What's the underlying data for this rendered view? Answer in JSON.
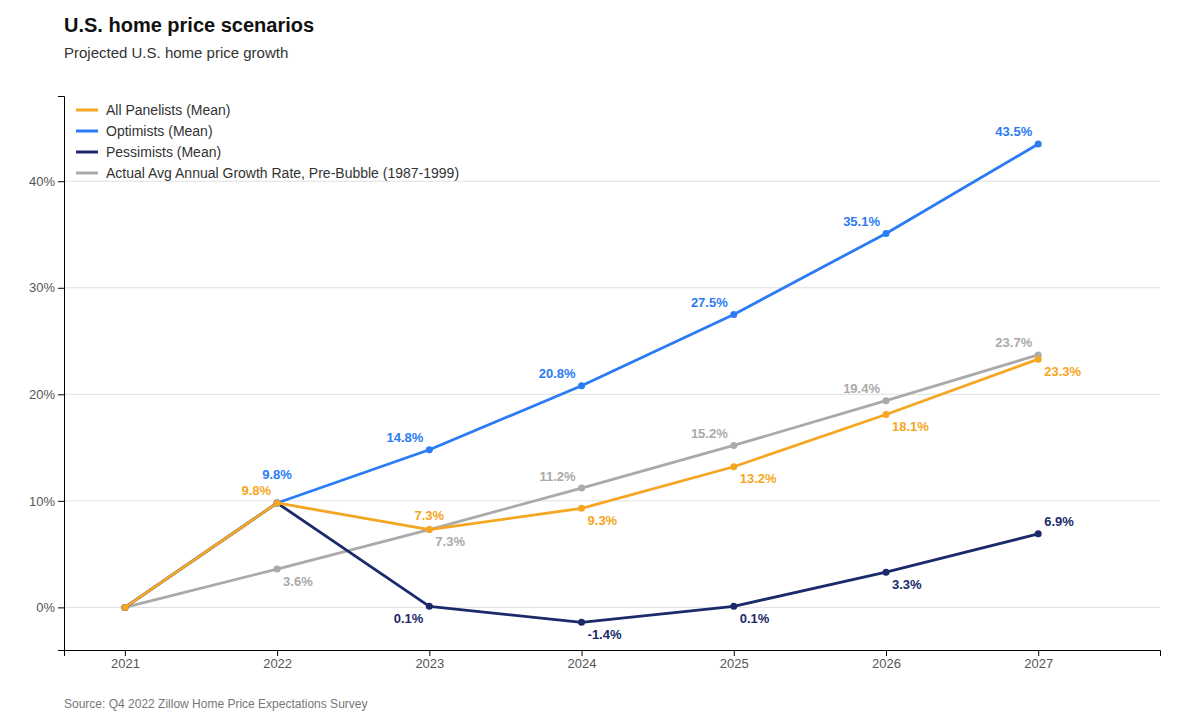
{
  "chart_data": {
    "type": "line",
    "title": "U.S. home price scenarios",
    "subtitle": "Projected U.S. home price growth",
    "source": "Source: Q4 2022 Zillow Home Price Expectations Survey",
    "x": [
      2021,
      2022,
      2023,
      2024,
      2025,
      2026,
      2027
    ],
    "xlim": [
      2020.6,
      2027.8
    ],
    "xticks": [
      2021,
      2022,
      2023,
      2024,
      2025,
      2026,
      2027
    ],
    "ylim": [
      -4,
      48
    ],
    "yticks": [
      {
        "value": 0,
        "label": "0%"
      },
      {
        "value": 10,
        "label": "10%"
      },
      {
        "value": 20,
        "label": "20%"
      },
      {
        "value": 30,
        "label": "30%"
      },
      {
        "value": 40,
        "label": "40%"
      }
    ],
    "grid": true,
    "legend": "upper left",
    "data_labels": true,
    "marker": "circle",
    "series": [
      {
        "name": "All Panelists (Mean)",
        "color": "#F5A623",
        "values": [
          0.0,
          9.8,
          7.3,
          9.3,
          13.2,
          18.1,
          23.3
        ],
        "value_labels": [
          null,
          "9.8%",
          "7.3%",
          "9.3%",
          "13.2%",
          "18.1%",
          "23.3%"
        ]
      },
      {
        "name": "Optimists (Mean)",
        "color": "#2B7BF5",
        "values": [
          0.0,
          9.8,
          14.8,
          20.8,
          27.5,
          35.1,
          43.5
        ],
        "value_labels": [
          null,
          "9.8%",
          "14.8%",
          "20.8%",
          "27.5%",
          "35.1%",
          "43.5%"
        ]
      },
      {
        "name": "Pessimists (Mean)",
        "color": "#1B2A6B",
        "values": [
          0.0,
          9.8,
          0.1,
          -1.4,
          0.1,
          3.3,
          6.9
        ],
        "value_labels": [
          null,
          null,
          "0.1%",
          "-1.4%",
          "0.1%",
          "3.3%",
          "6.9%"
        ]
      },
      {
        "name": "Actual Avg Annual Growth Rate, Pre-Bubble (1987-1999)",
        "color": "#AAAAAA",
        "values": [
          0.0,
          3.6,
          7.3,
          11.2,
          15.2,
          19.4,
          23.7
        ],
        "value_labels": [
          null,
          "3.6%",
          "7.3%",
          "11.2%",
          "15.2%",
          "19.4%",
          "23.7%"
        ]
      }
    ]
  }
}
